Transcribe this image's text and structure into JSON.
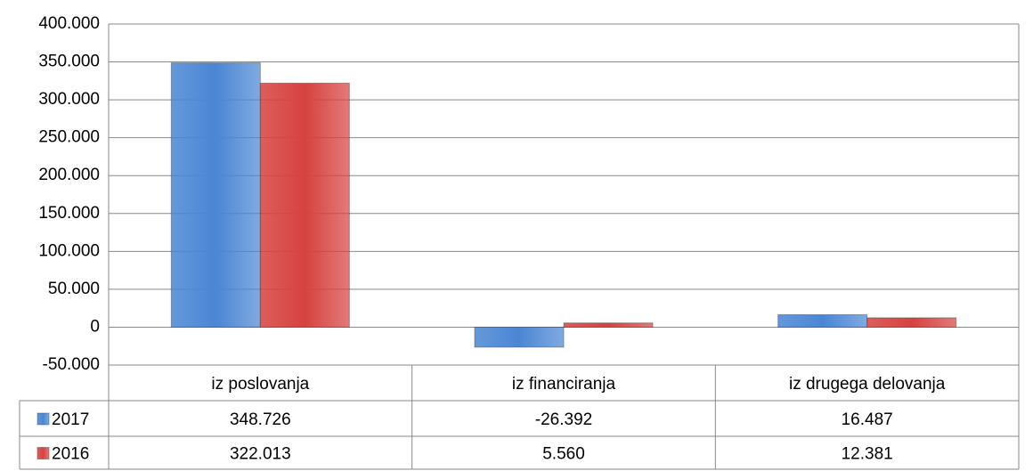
{
  "chart_data": {
    "type": "bar",
    "categories": [
      "iz poslovanja",
      "iz financiranja",
      "iz drugega delovanja"
    ],
    "series": [
      {
        "name": "2017",
        "color": "#4a86d4",
        "values": [
          348726,
          -26392,
          16487
        ],
        "value_labels": [
          "348.726",
          "-26.392",
          "16.487"
        ]
      },
      {
        "name": "2016",
        "color": "#d6423f",
        "values": [
          322013,
          5560,
          12381
        ],
        "value_labels": [
          "322.013",
          "5.560",
          "12.381"
        ]
      }
    ],
    "ylim": [
      -50000,
      400000
    ],
    "yticks": [
      {
        "value": -50000,
        "label": "-50.000"
      },
      0,
      {
        "value": 50000,
        "label": "50.000"
      },
      {
        "value": 100000,
        "label": "100.000"
      },
      {
        "value": 150000,
        "label": "150.000"
      },
      {
        "value": 200000,
        "label": "200.000"
      },
      {
        "value": 250000,
        "label": "250.000"
      },
      {
        "value": 300000,
        "label": "300.000"
      },
      {
        "value": 350000,
        "label": "350.000"
      },
      {
        "value": 400000,
        "label": "400.000"
      }
    ],
    "grid": true,
    "legend": "table"
  }
}
